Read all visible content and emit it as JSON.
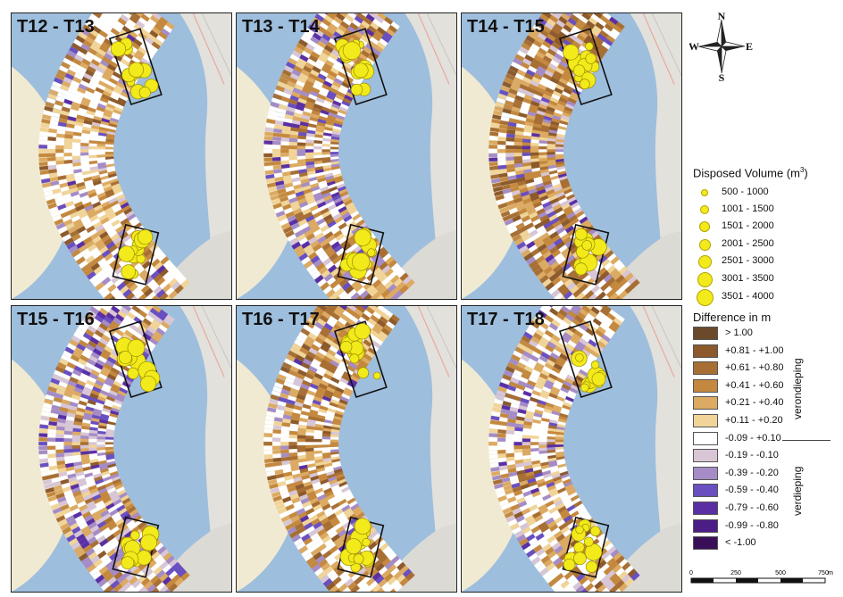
{
  "panels": [
    {
      "title": "T12 - T13"
    },
    {
      "title": "T13 - T14"
    },
    {
      "title": "T14 - T15"
    },
    {
      "title": "T15 - T16"
    },
    {
      "title": "T16 - T17"
    },
    {
      "title": "T17 - T18"
    }
  ],
  "compass": {
    "n": "N",
    "s": "S",
    "e": "E",
    "w": "W"
  },
  "legend": {
    "volume_title": "Disposed Volume (m",
    "volume_title_sup": "3",
    "volume_title_end": ")",
    "volume_classes": [
      "500 - 1000",
      "1001 - 1500",
      "1501 - 2000",
      "2001 - 2500",
      "2501 - 3000",
      "3001 - 3500",
      "3501 - 4000"
    ],
    "difference_title": "Difference in m",
    "difference_classes": [
      {
        "label": "> 1.00",
        "color": "#6b4a2b"
      },
      {
        "label": "+0.81 - +1.00",
        "color": "#8c5a2c"
      },
      {
        "label": "+0.61 - +0.80",
        "color": "#a86f34"
      },
      {
        "label": "+0.41 - +0.60",
        "color": "#c4893f"
      },
      {
        "label": "+0.21 - +0.40",
        "color": "#dcaa62"
      },
      {
        "label": "+0.11 - +0.20",
        "color": "#f1d498"
      },
      {
        "label": "-0.09 - +0.10",
        "color": "#ffffff"
      },
      {
        "label": "-0.19 - -0.10",
        "color": "#d8c6d6"
      },
      {
        "label": "-0.39 - -0.20",
        "color": "#a58cc6"
      },
      {
        "label": "-0.59 - -0.40",
        "color": "#6a4fc0"
      },
      {
        "label": "-0.79 - -0.60",
        "color": "#5a2fa4"
      },
      {
        "label": "-0.99 - -0.80",
        "color": "#4a1e86"
      },
      {
        "label": "< -1.00",
        "color": "#3a0f5a"
      }
    ],
    "shallowing_label": "verondieping",
    "deepening_label": "verdieping"
  },
  "scale": {
    "ticks": [
      "0",
      "250",
      "500",
      "750"
    ],
    "unit": "m"
  }
}
